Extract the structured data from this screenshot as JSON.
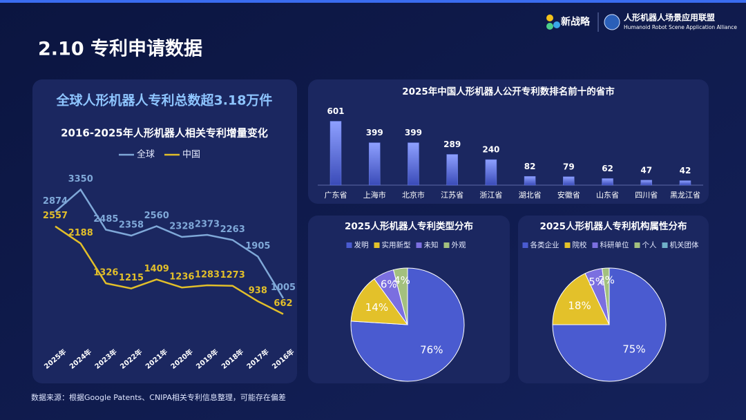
{
  "header": {
    "title": "2.10 专利申请数据",
    "logo_main": "新战略",
    "logo_org": "人形机器人场景应用联盟",
    "logo_org_en": "Humanoid Robot Scene Application Alliance"
  },
  "footer": "数据来源：根据Google Patents、CNIPA相关专利信息整理，可能存在偏差",
  "chart_data": [
    {
      "type": "line",
      "annotation": "全球人形机器人专利总数超3.18万件",
      "title": "2016-2025年人形机器人相关专利增量变化",
      "categories": [
        "2025年",
        "2024年",
        "2023年",
        "2022年",
        "2021年",
        "2020年",
        "2019年",
        "2018年",
        "2017年",
        "2016年"
      ],
      "series": [
        {
          "name": "全球",
          "color": "#7fa8d8",
          "values": [
            2874,
            3350,
            2485,
            2358,
            2560,
            2328,
            2373,
            2263,
            1905,
            1005
          ]
        },
        {
          "name": "中国",
          "color": "#e2bf2a",
          "values": [
            2557,
            2188,
            1326,
            1215,
            1409,
            1236,
            1283,
            1273,
            938,
            662
          ]
        }
      ],
      "ylim": [
        0,
        4000
      ],
      "legend": "top"
    },
    {
      "type": "bar",
      "title": "2025年中国人形机器人公开专利数排名前十的省市",
      "categories": [
        "广东省",
        "上海市",
        "北京市",
        "江苏省",
        "浙江省",
        "湖北省",
        "安徽省",
        "山东省",
        "四川省",
        "黑龙江省"
      ],
      "values": [
        601,
        399,
        399,
        289,
        240,
        82,
        79,
        62,
        47,
        42
      ],
      "color": "#6b7fe8",
      "ylim": [
        0,
        650
      ]
    },
    {
      "type": "pie",
      "title": "2025人形机器人专利类型分布",
      "categories": [
        "发明",
        "实用新型",
        "未知",
        "外观"
      ],
      "values": [
        76,
        14,
        6,
        4
      ],
      "value_labels": [
        "76%",
        "14%",
        "6%",
        "4%"
      ],
      "colors": [
        "#4a5bd0",
        "#e3c12a",
        "#7b6fe0",
        "#a3c07e"
      ],
      "legend": "top"
    },
    {
      "type": "pie",
      "title": "2025人形机器人专利机构属性分布",
      "categories": [
        "各类企业",
        "院校",
        "科研单位",
        "个人",
        "机关团体"
      ],
      "values": [
        75,
        18,
        5,
        2,
        0
      ],
      "value_labels": [
        "75%",
        "18%",
        "5%",
        "2%",
        null
      ],
      "colors": [
        "#4a5bd0",
        "#e3c12a",
        "#7b6fe0",
        "#a3c07e",
        "#6fb0c8"
      ],
      "legend": "top"
    }
  ]
}
